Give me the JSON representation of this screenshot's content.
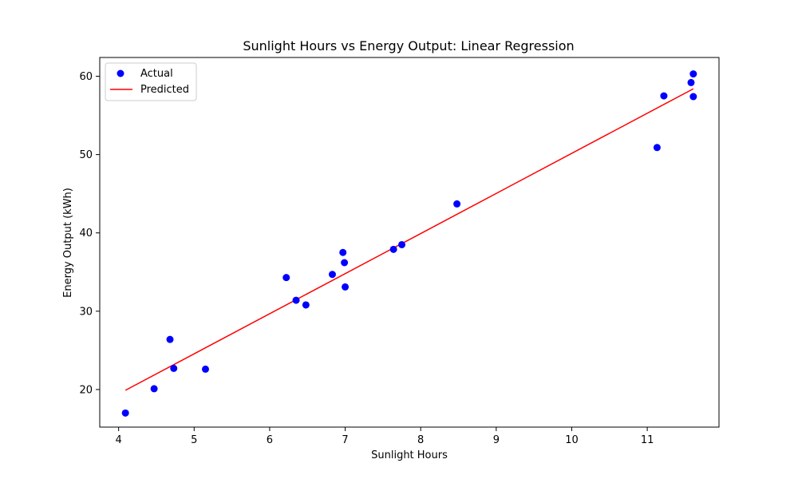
{
  "chart_data": {
    "type": "scatter",
    "title": "Sunlight Hours vs Energy Output: Linear Regression",
    "xlabel": "Sunlight Hours",
    "ylabel": "Energy Output (kWh)",
    "xlim": [
      3.75,
      11.95
    ],
    "ylim": [
      15.2,
      62.4
    ],
    "xticks": [
      4,
      5,
      6,
      7,
      8,
      9,
      10,
      11
    ],
    "yticks": [
      20,
      30,
      40,
      50,
      60
    ],
    "grid": false,
    "legend_position": "top-left",
    "series": [
      {
        "name": "Actual",
        "kind": "scatter",
        "color": "#0000ff",
        "points": [
          {
            "x": 4.09,
            "y": 17.0
          },
          {
            "x": 4.47,
            "y": 20.1
          },
          {
            "x": 4.68,
            "y": 26.4
          },
          {
            "x": 4.73,
            "y": 22.7
          },
          {
            "x": 5.15,
            "y": 22.6
          },
          {
            "x": 6.22,
            "y": 34.3
          },
          {
            "x": 6.35,
            "y": 31.4
          },
          {
            "x": 6.48,
            "y": 30.8
          },
          {
            "x": 6.83,
            "y": 34.7
          },
          {
            "x": 6.97,
            "y": 37.5
          },
          {
            "x": 6.99,
            "y": 36.2
          },
          {
            "x": 7.0,
            "y": 33.1
          },
          {
            "x": 7.64,
            "y": 37.9
          },
          {
            "x": 7.75,
            "y": 38.5
          },
          {
            "x": 8.48,
            "y": 43.7
          },
          {
            "x": 11.13,
            "y": 50.9
          },
          {
            "x": 11.22,
            "y": 57.5
          },
          {
            "x": 11.58,
            "y": 59.2
          },
          {
            "x": 11.61,
            "y": 60.3
          },
          {
            "x": 11.61,
            "y": 57.4
          }
        ]
      },
      {
        "name": "Predicted",
        "kind": "line",
        "color": "#ff0000",
        "points": [
          {
            "x": 4.09,
            "y": 19.9
          },
          {
            "x": 11.61,
            "y": 58.4
          }
        ]
      }
    ]
  }
}
